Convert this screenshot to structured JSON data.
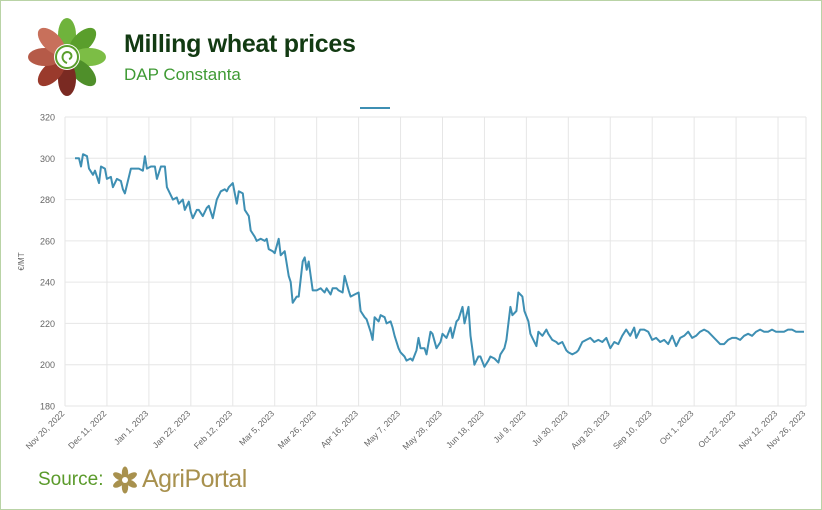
{
  "header": {
    "title": "Milling wheat prices",
    "subtitle": "DAP Constanta"
  },
  "footer": {
    "source_label": "Source:",
    "brand_name": "AgriPortal"
  },
  "colors": {
    "line": "#3e8fb3",
    "grid": "#e6e6e6",
    "title": "#123a12",
    "subtitle": "#3f9a34"
  },
  "chart_data": {
    "type": "line",
    "ylabel": "€/MT",
    "xlabel": "",
    "ylim": [
      180,
      320
    ],
    "yticks": [
      180,
      200,
      220,
      240,
      260,
      280,
      300,
      320
    ],
    "grid": true,
    "legend": "top-center",
    "xlim": [
      "2022-11-20",
      "2023-11-26"
    ],
    "xticks": [
      "Nov 20, 2022",
      "Dec 11, 2022",
      "Jan 1, 2023",
      "Jan 22, 2023",
      "Feb 12, 2023",
      "Mar 5, 2023",
      "Mar 26, 2023",
      "Apr 16, 2023",
      "May 7, 2023",
      "May 28, 2023",
      "Jun 18, 2023",
      "Jul 9, 2023",
      "Jul 30, 2023",
      "Aug 20, 2023",
      "Sep 10, 2023",
      "Oct 1, 2023",
      "Oct 22, 2023",
      "Nov 12, 2023",
      "Nov 26, 2023"
    ],
    "series": [
      {
        "name": "",
        "points": [
          [
            "2022-11-25",
            300
          ],
          [
            "2022-11-27",
            300
          ],
          [
            "2022-11-28",
            296
          ],
          [
            "2022-11-29",
            302
          ],
          [
            "2022-12-01",
            301
          ],
          [
            "2022-12-02",
            295
          ],
          [
            "2022-12-04",
            292
          ],
          [
            "2022-12-05",
            294
          ],
          [
            "2022-12-07",
            288
          ],
          [
            "2022-12-08",
            296
          ],
          [
            "2022-12-10",
            295
          ],
          [
            "2022-12-11",
            290
          ],
          [
            "2022-12-13",
            291
          ],
          [
            "2022-12-14",
            286
          ],
          [
            "2022-12-16",
            290
          ],
          [
            "2022-12-18",
            289
          ],
          [
            "2022-12-19",
            285
          ],
          [
            "2022-12-20",
            283
          ],
          [
            "2022-12-22",
            291
          ],
          [
            "2022-12-23",
            295
          ],
          [
            "2022-12-25",
            295
          ],
          [
            "2022-12-27",
            295
          ],
          [
            "2022-12-29",
            294
          ],
          [
            "2022-12-30",
            301
          ],
          [
            "2022-12-31",
            295
          ],
          [
            "2023-01-02",
            296
          ],
          [
            "2023-01-04",
            296
          ],
          [
            "2023-01-05",
            290
          ],
          [
            "2023-01-07",
            296
          ],
          [
            "2023-01-09",
            296
          ],
          [
            "2023-01-10",
            286
          ],
          [
            "2023-01-12",
            282
          ],
          [
            "2023-01-13",
            280
          ],
          [
            "2023-01-15",
            281
          ],
          [
            "2023-01-16",
            278
          ],
          [
            "2023-01-18",
            280
          ],
          [
            "2023-01-19",
            275
          ],
          [
            "2023-01-21",
            279
          ],
          [
            "2023-01-22",
            274
          ],
          [
            "2023-01-23",
            271
          ],
          [
            "2023-01-25",
            275
          ],
          [
            "2023-01-26",
            275
          ],
          [
            "2023-01-28",
            272
          ],
          [
            "2023-01-30",
            276
          ],
          [
            "2023-01-31",
            277
          ],
          [
            "2023-02-02",
            271
          ],
          [
            "2023-02-04",
            280
          ],
          [
            "2023-02-06",
            284
          ],
          [
            "2023-02-08",
            285
          ],
          [
            "2023-02-09",
            284
          ],
          [
            "2023-02-10",
            286
          ],
          [
            "2023-02-12",
            288
          ],
          [
            "2023-02-13",
            283
          ],
          [
            "2023-02-14",
            278
          ],
          [
            "2023-02-15",
            284
          ],
          [
            "2023-02-17",
            283
          ],
          [
            "2023-02-18",
            275
          ],
          [
            "2023-02-20",
            272
          ],
          [
            "2023-02-21",
            265
          ],
          [
            "2023-02-23",
            262
          ],
          [
            "2023-02-24",
            260
          ],
          [
            "2023-02-26",
            261
          ],
          [
            "2023-02-28",
            260
          ],
          [
            "2023-03-01",
            261
          ],
          [
            "2023-03-02",
            256
          ],
          [
            "2023-03-04",
            255
          ],
          [
            "2023-03-05",
            254
          ],
          [
            "2023-03-07",
            261
          ],
          [
            "2023-03-08",
            253
          ],
          [
            "2023-03-10",
            255
          ],
          [
            "2023-03-12",
            243
          ],
          [
            "2023-03-13",
            240
          ],
          [
            "2023-03-14",
            230
          ],
          [
            "2023-03-16",
            233
          ],
          [
            "2023-03-17",
            233
          ],
          [
            "2023-03-19",
            250
          ],
          [
            "2023-03-20",
            252
          ],
          [
            "2023-03-21",
            246
          ],
          [
            "2023-03-22",
            250
          ],
          [
            "2023-03-24",
            236
          ],
          [
            "2023-03-26",
            236
          ],
          [
            "2023-03-28",
            237
          ],
          [
            "2023-03-30",
            235
          ],
          [
            "2023-03-31",
            237
          ],
          [
            "2023-04-02",
            234
          ],
          [
            "2023-04-03",
            237
          ],
          [
            "2023-04-05",
            237
          ],
          [
            "2023-04-06",
            236
          ],
          [
            "2023-04-08",
            235
          ],
          [
            "2023-04-09",
            243
          ],
          [
            "2023-04-11",
            236
          ],
          [
            "2023-04-12",
            233
          ],
          [
            "2023-04-14",
            234
          ],
          [
            "2023-04-16",
            235
          ],
          [
            "2023-04-17",
            226
          ],
          [
            "2023-04-19",
            223
          ],
          [
            "2023-04-20",
            222
          ],
          [
            "2023-04-22",
            216
          ],
          [
            "2023-04-23",
            212
          ],
          [
            "2023-04-24",
            223
          ],
          [
            "2023-04-26",
            221
          ],
          [
            "2023-04-27",
            224
          ],
          [
            "2023-04-29",
            223
          ],
          [
            "2023-04-30",
            220
          ],
          [
            "2023-05-02",
            221
          ],
          [
            "2023-05-03",
            218
          ],
          [
            "2023-05-04",
            214
          ],
          [
            "2023-05-06",
            208
          ],
          [
            "2023-05-07",
            206
          ],
          [
            "2023-05-09",
            204
          ],
          [
            "2023-05-10",
            202
          ],
          [
            "2023-05-12",
            203
          ],
          [
            "2023-05-13",
            202
          ],
          [
            "2023-05-15",
            207
          ],
          [
            "2023-05-16",
            213
          ],
          [
            "2023-05-17",
            208
          ],
          [
            "2023-05-19",
            208
          ],
          [
            "2023-05-20",
            205
          ],
          [
            "2023-05-22",
            216
          ],
          [
            "2023-05-23",
            215
          ],
          [
            "2023-05-25",
            208
          ],
          [
            "2023-05-27",
            211
          ],
          [
            "2023-05-28",
            215
          ],
          [
            "2023-05-30",
            213
          ],
          [
            "2023-06-01",
            218
          ],
          [
            "2023-06-02",
            213
          ],
          [
            "2023-06-04",
            221
          ],
          [
            "2023-06-05",
            222
          ],
          [
            "2023-06-07",
            228
          ],
          [
            "2023-06-08",
            220
          ],
          [
            "2023-06-10",
            228
          ],
          [
            "2023-06-11",
            214
          ],
          [
            "2023-06-12",
            207
          ],
          [
            "2023-06-13",
            200
          ],
          [
            "2023-06-15",
            204
          ],
          [
            "2023-06-16",
            204
          ],
          [
            "2023-06-18",
            199
          ],
          [
            "2023-06-20",
            202
          ],
          [
            "2023-06-21",
            204
          ],
          [
            "2023-06-23",
            203
          ],
          [
            "2023-06-25",
            201
          ],
          [
            "2023-06-26",
            205
          ],
          [
            "2023-06-28",
            208
          ],
          [
            "2023-06-29",
            212
          ],
          [
            "2023-07-01",
            228
          ],
          [
            "2023-07-02",
            224
          ],
          [
            "2023-07-04",
            226
          ],
          [
            "2023-07-05",
            235
          ],
          [
            "2023-07-07",
            233
          ],
          [
            "2023-07-08",
            226
          ],
          [
            "2023-07-10",
            221
          ],
          [
            "2023-07-11",
            215
          ],
          [
            "2023-07-12",
            213
          ],
          [
            "2023-07-14",
            209
          ],
          [
            "2023-07-15",
            216
          ],
          [
            "2023-07-17",
            214
          ],
          [
            "2023-07-19",
            217
          ],
          [
            "2023-07-20",
            215
          ],
          [
            "2023-07-22",
            212
          ],
          [
            "2023-07-24",
            211
          ],
          [
            "2023-07-25",
            210
          ],
          [
            "2023-07-27",
            211
          ],
          [
            "2023-07-29",
            207
          ],
          [
            "2023-07-30",
            206
          ],
          [
            "2023-08-01",
            205
          ],
          [
            "2023-08-03",
            206
          ],
          [
            "2023-08-04",
            207
          ],
          [
            "2023-08-06",
            211
          ],
          [
            "2023-08-08",
            212
          ],
          [
            "2023-08-10",
            213
          ],
          [
            "2023-08-12",
            211
          ],
          [
            "2023-08-14",
            212
          ],
          [
            "2023-08-16",
            211
          ],
          [
            "2023-08-18",
            213
          ],
          [
            "2023-08-20",
            208
          ],
          [
            "2023-08-22",
            211
          ],
          [
            "2023-08-24",
            210
          ],
          [
            "2023-08-26",
            214
          ],
          [
            "2023-08-28",
            217
          ],
          [
            "2023-08-30",
            214
          ],
          [
            "2023-09-01",
            218
          ],
          [
            "2023-09-02",
            213
          ],
          [
            "2023-09-04",
            217
          ],
          [
            "2023-09-06",
            217
          ],
          [
            "2023-09-08",
            216
          ],
          [
            "2023-09-10",
            212
          ],
          [
            "2023-09-12",
            213
          ],
          [
            "2023-09-14",
            211
          ],
          [
            "2023-09-16",
            212
          ],
          [
            "2023-09-18",
            210
          ],
          [
            "2023-09-20",
            214
          ],
          [
            "2023-09-22",
            209
          ],
          [
            "2023-09-24",
            213
          ],
          [
            "2023-09-26",
            214
          ],
          [
            "2023-09-28",
            216
          ],
          [
            "2023-09-30",
            213
          ],
          [
            "2023-10-02",
            214
          ],
          [
            "2023-10-04",
            216
          ],
          [
            "2023-10-06",
            217
          ],
          [
            "2023-10-08",
            216
          ],
          [
            "2023-10-10",
            214
          ],
          [
            "2023-10-12",
            212
          ],
          [
            "2023-10-14",
            210
          ],
          [
            "2023-10-16",
            210
          ],
          [
            "2023-10-18",
            212
          ],
          [
            "2023-10-20",
            213
          ],
          [
            "2023-10-22",
            213
          ],
          [
            "2023-10-24",
            212
          ],
          [
            "2023-10-26",
            214
          ],
          [
            "2023-10-28",
            215
          ],
          [
            "2023-10-30",
            214
          ],
          [
            "2023-11-01",
            216
          ],
          [
            "2023-11-03",
            217
          ],
          [
            "2023-11-05",
            216
          ],
          [
            "2023-11-07",
            216
          ],
          [
            "2023-11-09",
            217
          ],
          [
            "2023-11-11",
            216
          ],
          [
            "2023-11-13",
            216
          ],
          [
            "2023-11-15",
            216
          ],
          [
            "2023-11-17",
            217
          ],
          [
            "2023-11-19",
            217
          ],
          [
            "2023-11-21",
            216
          ],
          [
            "2023-11-23",
            216
          ],
          [
            "2023-11-25",
            216
          ]
        ]
      }
    ]
  }
}
